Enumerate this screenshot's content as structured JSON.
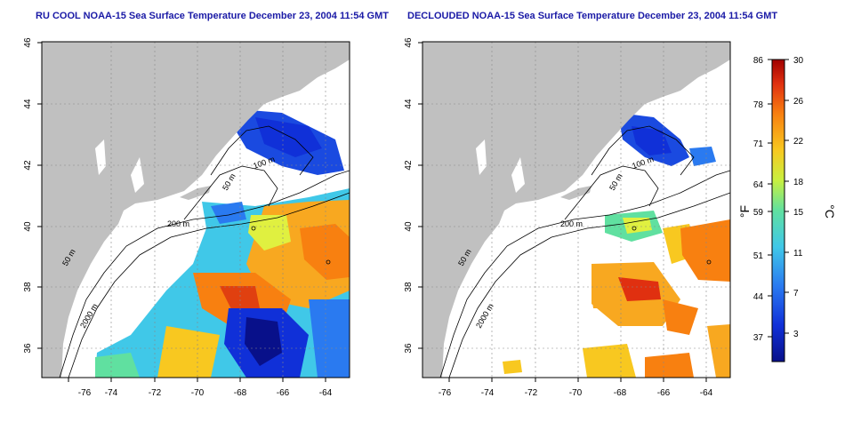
{
  "titles": {
    "left": "RU COOL NOAA-15 Sea Surface Temperature December 23, 2004 11:54 GMT",
    "right": "DECLOUDED NOAA-15 Sea Surface Temperature December 23, 2004 11:54 GMT"
  },
  "axes": {
    "x_ticks": [
      "-76",
      "-74",
      "-72",
      "-70",
      "-68",
      "-66",
      "-64"
    ],
    "y_ticks": [
      "36",
      "38",
      "40",
      "42",
      "44",
      "46"
    ]
  },
  "contour_labels": [
    "200 m",
    "50 m",
    "2000 m",
    "100 m"
  ],
  "colorbar": {
    "fahrenheit_ticks": [
      "86",
      "78",
      "71",
      "64",
      "59",
      "51",
      "44",
      "37"
    ],
    "celsius_ticks": [
      "30",
      "26",
      "22",
      "18",
      "15",
      "11",
      "7",
      "3"
    ],
    "fahrenheit_unit": "°F",
    "celsius_unit": "°C"
  },
  "colors": {
    "land": "#c0c0c0",
    "ocean_missing": "#ffffff",
    "title": "#1a1aa6",
    "scale": [
      "#08108a",
      "#1030d8",
      "#2a7af0",
      "#40c8e8",
      "#60e0a0",
      "#c8f040",
      "#f8c820",
      "#f88010",
      "#e03010",
      "#a00000"
    ]
  }
}
